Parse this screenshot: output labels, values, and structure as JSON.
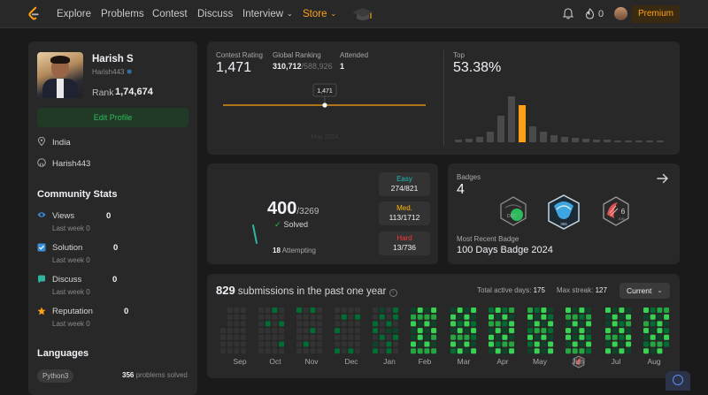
{
  "nav": {
    "links": [
      "Explore",
      "Problems",
      "Contest",
      "Discuss",
      "Interview",
      "Store"
    ],
    "streak_count": "0",
    "premium_label": "Premium"
  },
  "profile": {
    "name": "Harish S",
    "handle": "Harish443",
    "rank_label": "Rank",
    "rank_value": "1,74,674",
    "edit_button": "Edit Profile",
    "location": "India",
    "github": "Harish443"
  },
  "community": {
    "title": "Community Stats",
    "stats": [
      {
        "label": "Views",
        "value": "0",
        "sub": "Last week 0"
      },
      {
        "label": "Solution",
        "value": "0",
        "sub": "Last week 0"
      },
      {
        "label": "Discuss",
        "value": "0",
        "sub": "Last week 0"
      },
      {
        "label": "Reputation",
        "value": "0",
        "sub": "Last week 0"
      }
    ],
    "colors": {
      "views": "#3a8fd8",
      "solution": "#3a8fd8",
      "discuss": "#2fb5a0",
      "reputation": "#ffa116"
    }
  },
  "languages": {
    "title": "Languages",
    "tag": "Python3",
    "count": "356",
    "suffix": "problems solved"
  },
  "rating": {
    "contest_rating_label": "Contest Rating",
    "contest_rating": "1,471",
    "global_ranking_label": "Global Ranking",
    "global_rank": "310,712",
    "global_total": "/588,926",
    "attended_label": "Attended",
    "attended": "1",
    "tooltip": "1,471",
    "faded_date": "May 2024",
    "top_label": "Top",
    "top_value": "53.38%"
  },
  "solved": {
    "count": "400",
    "total": "/3269",
    "label": "Solved",
    "attempting_count": "18",
    "attempting_label": "Attempting",
    "difficulties": [
      {
        "label": "Easy",
        "value": "274/821",
        "color": "#1cbaba"
      },
      {
        "label": "Med.",
        "value": "113/1712",
        "color": "#ffb700"
      },
      {
        "label": "Hard",
        "value": "13/736",
        "color": "#f63737"
      }
    ]
  },
  "badges": {
    "title": "Badges",
    "count": "4",
    "recent_label": "Most Recent Badge",
    "recent_name": "100 Days Badge 2024"
  },
  "submissions": {
    "count": "829",
    "label": "submissions in the past one year",
    "active_days_label": "Total active days:",
    "active_days": "175",
    "max_streak_label": "Max streak:",
    "max_streak": "127",
    "dropdown": "Current",
    "months": [
      "Sep",
      "Oct",
      "Nov",
      "Dec",
      "Jan",
      "Feb",
      "Mar",
      "Apr",
      "May",
      "Jun",
      "Jul",
      "Aug"
    ]
  }
}
